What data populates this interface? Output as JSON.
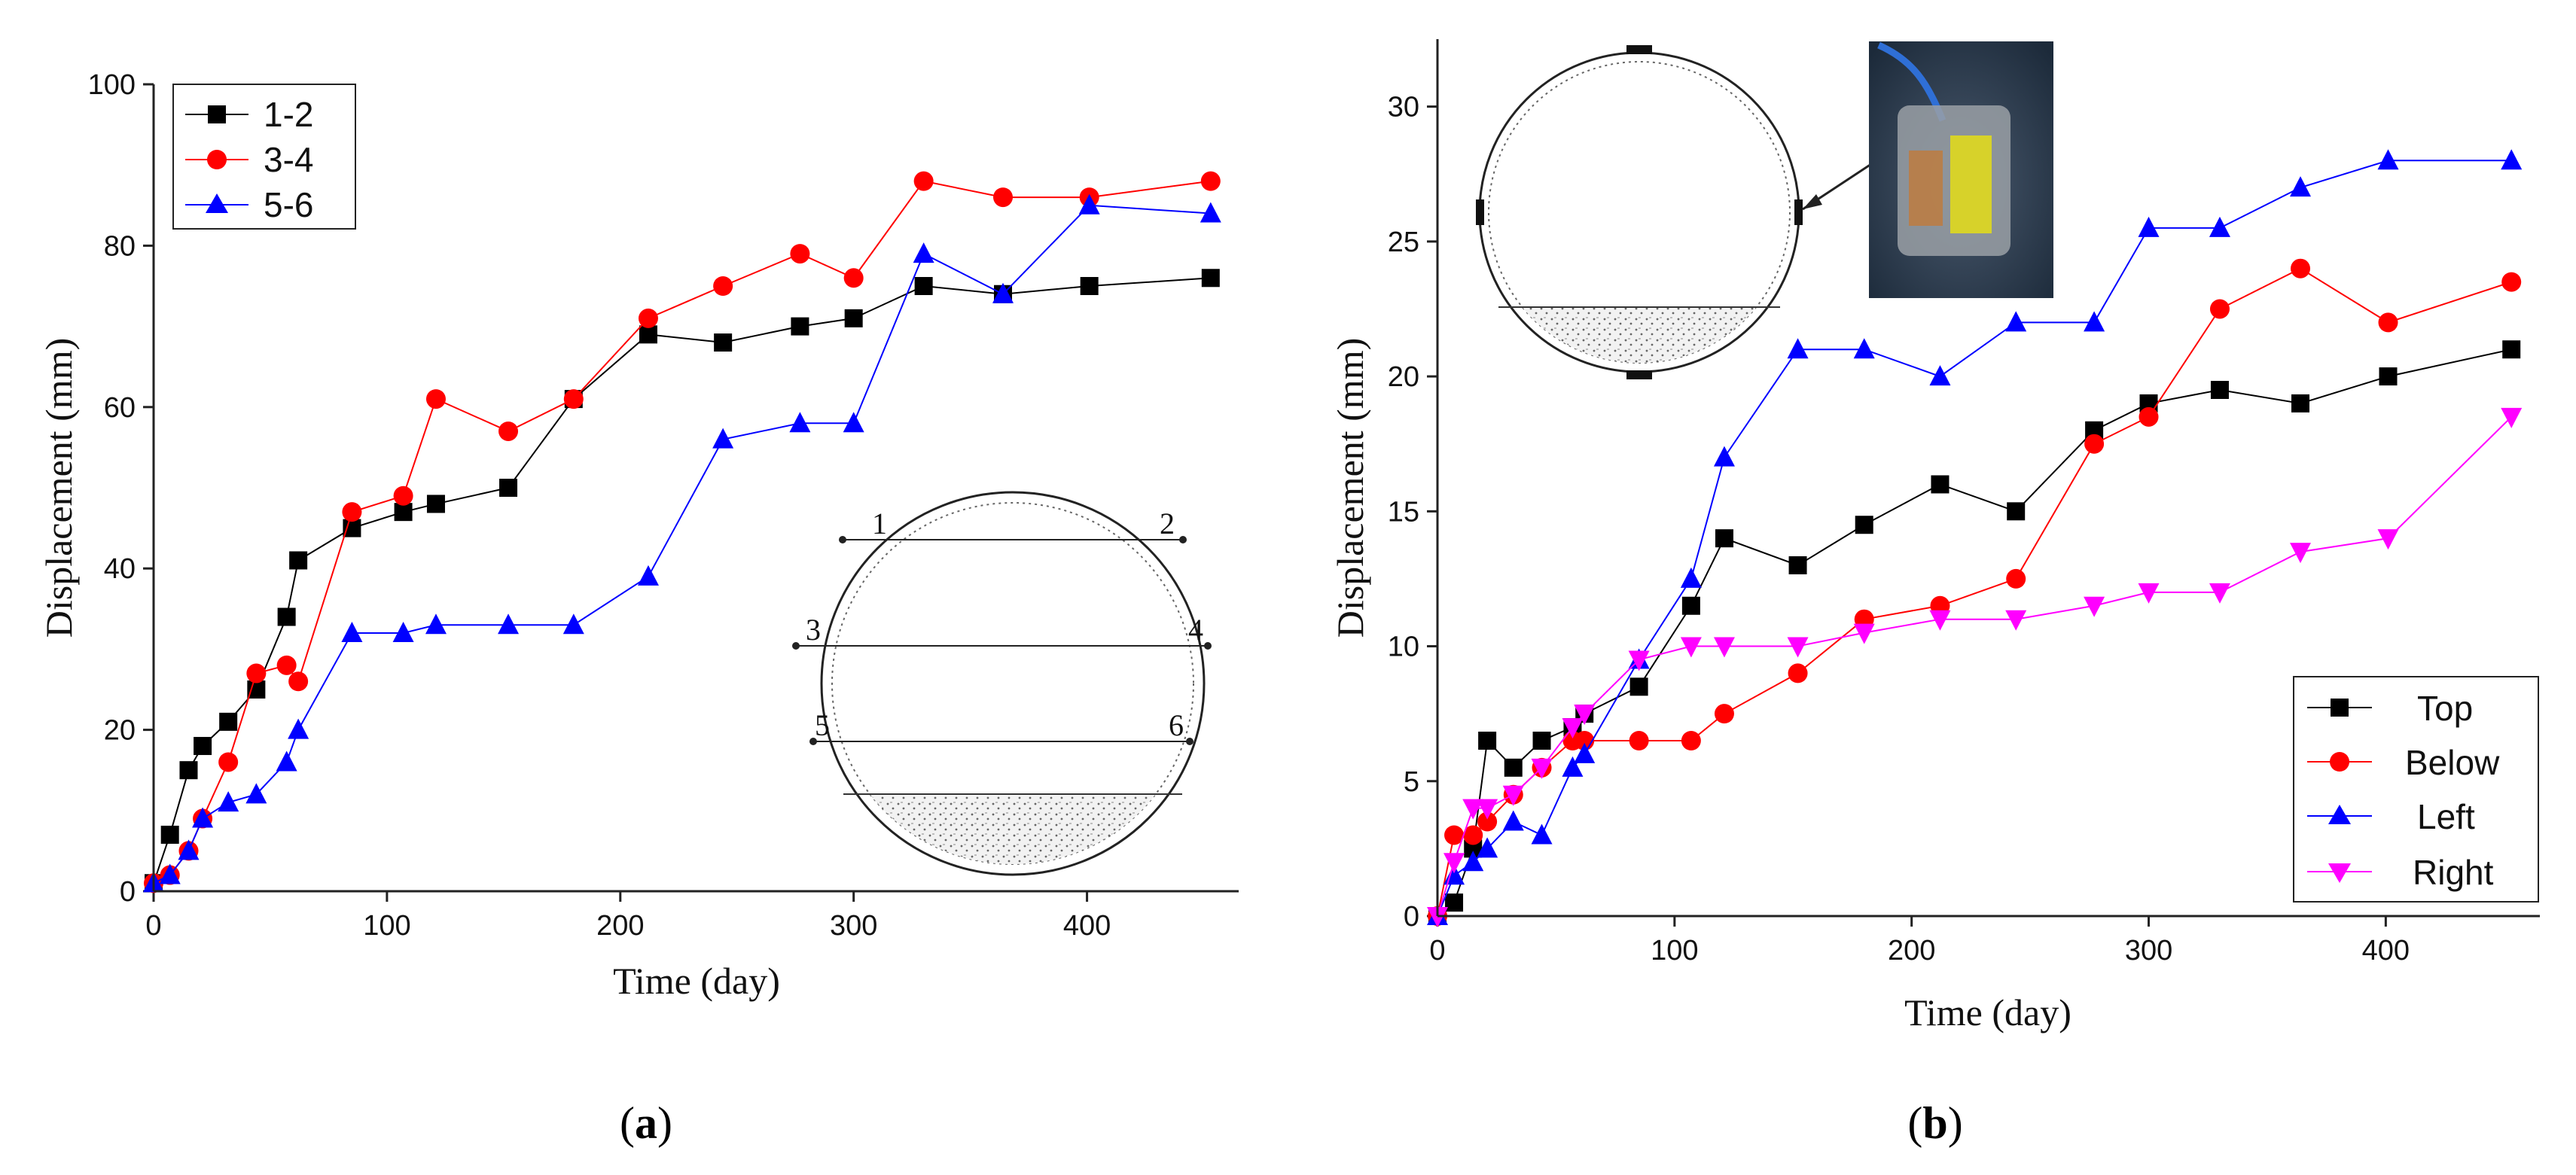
{
  "chart_data": [
    {
      "id": "a",
      "type": "line",
      "panel_label": "a",
      "xlabel": "Time (day)",
      "ylabel": "Displacement (mm)",
      "xlim": [
        0,
        465
      ],
      "ylim": [
        0,
        100
      ],
      "x_ticks": [
        0,
        100,
        200,
        300,
        400
      ],
      "y_ticks": [
        0,
        20,
        40,
        60,
        80,
        100
      ],
      "legend_position": "top-left",
      "series": [
        {
          "name": "1-2",
          "color": "#000000",
          "marker": "square",
          "x": [
            0,
            7,
            15,
            21,
            32,
            44,
            57,
            62,
            85,
            107,
            121,
            152,
            180,
            212,
            244,
            277,
            300,
            330,
            364,
            401,
            453
          ],
          "y": [
            1,
            7,
            15,
            18,
            21,
            25,
            34,
            41,
            45,
            47,
            48,
            50,
            61,
            69,
            68,
            70,
            71,
            75,
            74,
            75,
            76
          ]
        },
        {
          "name": "3-4",
          "color": "#ff0000",
          "marker": "circle",
          "x": [
            0,
            7,
            15,
            21,
            32,
            44,
            57,
            62,
            85,
            107,
            121,
            152,
            180,
            212,
            244,
            277,
            300,
            330,
            364,
            401,
            453
          ],
          "y": [
            1,
            2,
            5,
            9,
            16,
            27,
            28,
            26,
            47,
            49,
            61,
            57,
            61,
            71,
            75,
            79,
            76,
            88,
            86,
            86,
            88
          ]
        },
        {
          "name": "5-6",
          "color": "#0000ff",
          "marker": "triangle-up",
          "x": [
            0,
            7,
            15,
            21,
            32,
            44,
            57,
            62,
            85,
            107,
            121,
            152,
            180,
            212,
            244,
            277,
            300,
            330,
            364,
            401,
            453
          ],
          "y": [
            1,
            2,
            5,
            9,
            11,
            12,
            16,
            20,
            32,
            32,
            33,
            33,
            33,
            39,
            56,
            58,
            58,
            79,
            74,
            85,
            84
          ]
        }
      ],
      "inset_labels": [
        "1",
        "2",
        "3",
        "4",
        "5",
        "6"
      ]
    },
    {
      "id": "b",
      "type": "line",
      "panel_label": "b",
      "xlabel": "Time (day)",
      "ylabel": "Displacement (mm)",
      "xlim": [
        0,
        465
      ],
      "ylim": [
        0,
        32.5
      ],
      "x_ticks": [
        0,
        100,
        200,
        300,
        400
      ],
      "y_ticks": [
        0,
        5,
        10,
        15,
        20,
        25,
        30
      ],
      "legend_position": "bottom-right",
      "series": [
        {
          "name": "Top",
          "color": "#000000",
          "marker": "square",
          "x": [
            0,
            7,
            15,
            21,
            32,
            44,
            57,
            62,
            85,
            107,
            121,
            152,
            180,
            212,
            244,
            277,
            300,
            330,
            364,
            401,
            453
          ],
          "y": [
            0,
            0.5,
            2.5,
            6.5,
            5.5,
            6.5,
            7,
            7.5,
            8.5,
            11.5,
            14,
            13,
            14.5,
            16,
            15,
            18,
            19,
            19.5,
            19,
            20,
            21
          ]
        },
        {
          "name": "Below",
          "color": "#ff0000",
          "marker": "circle",
          "x": [
            0,
            7,
            15,
            21,
            32,
            44,
            57,
            62,
            85,
            107,
            121,
            152,
            180,
            212,
            244,
            277,
            300,
            330,
            364,
            401,
            453
          ],
          "y": [
            0,
            3,
            3,
            3.5,
            4.5,
            5.5,
            6.5,
            6.5,
            6.5,
            6.5,
            7.5,
            9,
            11,
            11.5,
            12.5,
            17.5,
            18.5,
            22.5,
            24,
            22,
            23.5
          ]
        },
        {
          "name": "Left",
          "color": "#0000ff",
          "marker": "triangle-up",
          "x": [
            0,
            7,
            15,
            21,
            32,
            44,
            57,
            62,
            85,
            107,
            121,
            152,
            180,
            212,
            244,
            277,
            300,
            330,
            364,
            401,
            453
          ],
          "y": [
            0,
            1.5,
            2,
            2.5,
            3.5,
            3,
            5.5,
            6,
            9.5,
            12.5,
            17,
            21,
            21,
            20,
            22,
            22,
            25.5,
            25.5,
            27,
            28,
            28
          ]
        },
        {
          "name": "Right",
          "color": "#ff00ff",
          "marker": "triangle-down",
          "x": [
            0,
            7,
            15,
            21,
            32,
            44,
            57,
            62,
            85,
            107,
            121,
            152,
            180,
            212,
            244,
            277,
            300,
            330,
            364,
            401,
            453
          ],
          "y": [
            0,
            2,
            4,
            4,
            4.5,
            5.5,
            7,
            7.5,
            9.5,
            10,
            10,
            10,
            10.5,
            11,
            11,
            11.5,
            12,
            12,
            13.5,
            14,
            18.5
          ]
        }
      ]
    }
  ]
}
